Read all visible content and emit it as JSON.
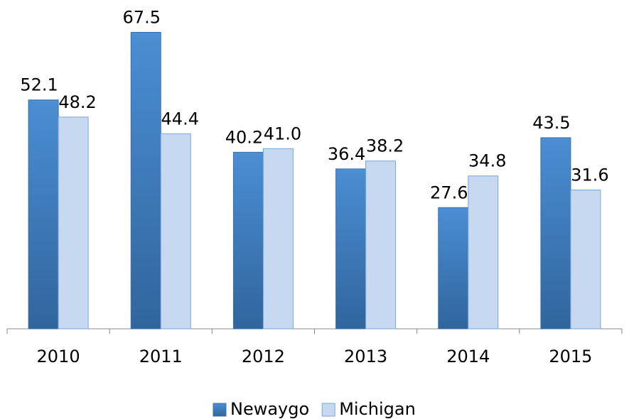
{
  "chart_data": {
    "type": "bar",
    "categories": [
      "2010",
      "2011",
      "2012",
      "2013",
      "2014",
      "2015"
    ],
    "series": [
      {
        "name": "Newaygo",
        "color": "#3f7dbf",
        "values": [
          52.1,
          67.5,
          40.2,
          36.4,
          27.6,
          43.5
        ],
        "value_labels": [
          "52.1",
          "67.5",
          "40.2",
          "36.4",
          "27.6",
          "43.5"
        ]
      },
      {
        "name": "Michigan",
        "color": "#c6d9f1",
        "values": [
          48.2,
          44.4,
          41.0,
          38.2,
          34.8,
          31.6
        ],
        "value_labels": [
          "48.2",
          "44.4",
          "41.0",
          "38.2",
          "34.8",
          "31.6"
        ]
      }
    ],
    "ylim": [
      0,
      70
    ],
    "legend": "bottom"
  }
}
